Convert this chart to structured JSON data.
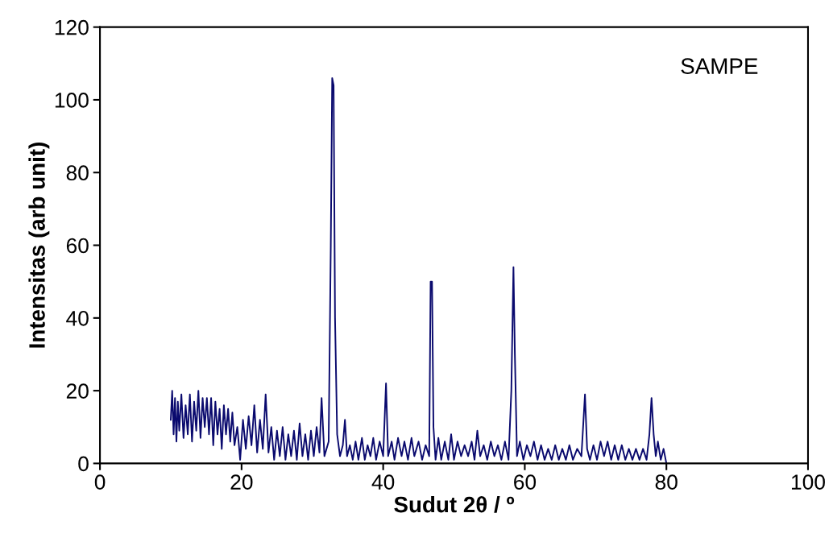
{
  "chart_data": {
    "type": "line",
    "xlabel": "Sudut 2θ / º",
    "ylabel": "Intensitas (arb unit)",
    "annotations": [
      "SAMPE"
    ],
    "xlim": [
      0,
      100
    ],
    "xticks": [
      0,
      20,
      40,
      60,
      80,
      100
    ],
    "ylim": [
      0,
      120
    ],
    "yticks": [
      0,
      20,
      40,
      60,
      80,
      100,
      120
    ],
    "grid": false,
    "series": [
      {
        "color": "#0a0a6e",
        "x": [
          10.0,
          10.2,
          10.4,
          10.6,
          10.8,
          11.0,
          11.2,
          11.5,
          11.8,
          12.1,
          12.4,
          12.7,
          13.0,
          13.3,
          13.6,
          13.9,
          14.2,
          14.5,
          14.8,
          15.1,
          15.4,
          15.7,
          16.0,
          16.3,
          16.6,
          16.9,
          17.2,
          17.5,
          17.8,
          18.1,
          18.4,
          18.7,
          19.0,
          19.4,
          19.8,
          20.2,
          20.6,
          21.0,
          21.4,
          21.8,
          22.2,
          22.6,
          23.0,
          23.4,
          23.8,
          24.2,
          24.6,
          25.0,
          25.4,
          25.8,
          26.2,
          26.6,
          27.0,
          27.4,
          27.8,
          28.2,
          28.6,
          29.0,
          29.4,
          29.8,
          30.2,
          30.6,
          31.0,
          31.3,
          31.7,
          32.3,
          32.6,
          32.8,
          33.0,
          33.2,
          33.5,
          33.9,
          34.3,
          34.6,
          34.9,
          35.3,
          35.7,
          36.1,
          36.5,
          37.0,
          37.4,
          37.8,
          38.2,
          38.6,
          39.0,
          39.5,
          40.0,
          40.4,
          40.7,
          41.2,
          41.6,
          42.1,
          42.6,
          43.0,
          43.5,
          44.0,
          44.4,
          45.0,
          45.5,
          46.0,
          46.5,
          46.7,
          46.9,
          47.1,
          47.4,
          47.8,
          48.2,
          48.7,
          49.2,
          49.6,
          50.0,
          50.5,
          51.0,
          51.5,
          52.0,
          52.5,
          52.9,
          53.3,
          53.7,
          54.2,
          54.7,
          55.2,
          55.7,
          56.2,
          56.7,
          57.2,
          57.7,
          58.1,
          58.4,
          58.6,
          58.9,
          59.3,
          59.8,
          60.3,
          60.8,
          61.3,
          61.8,
          62.3,
          62.8,
          63.3,
          63.8,
          64.3,
          64.8,
          65.3,
          65.8,
          66.3,
          66.8,
          67.4,
          68.0,
          68.5,
          68.8,
          69.2,
          69.7,
          70.2,
          70.7,
          71.2,
          71.7,
          72.2,
          72.7,
          73.2,
          73.7,
          74.2,
          74.7,
          75.2,
          75.7,
          76.2,
          76.7,
          77.2,
          77.6,
          77.9,
          78.2,
          78.5,
          78.8,
          79.2,
          79.6,
          80.0
        ],
        "values": [
          12,
          20,
          8,
          18,
          6,
          17,
          9,
          19,
          7,
          16,
          8,
          19,
          6,
          17,
          9,
          20,
          7,
          18,
          10,
          18,
          8,
          18,
          5,
          17,
          8,
          15,
          4,
          16,
          8,
          15,
          6,
          14,
          5,
          10,
          1,
          12,
          4,
          13,
          5,
          16,
          3,
          12,
          4,
          19,
          3,
          10,
          1,
          9,
          2,
          10,
          1,
          8,
          2,
          9,
          1,
          11,
          2,
          8,
          1,
          9,
          2,
          10,
          3,
          18,
          2,
          6,
          60,
          106,
          104,
          40,
          8,
          2,
          5,
          12,
          2,
          5,
          1,
          6,
          1,
          7,
          1,
          5,
          2,
          7,
          1,
          6,
          2,
          22,
          2,
          6,
          1,
          7,
          2,
          6,
          1,
          7,
          2,
          6,
          1,
          5,
          2,
          50,
          50,
          10,
          1,
          7,
          1,
          6,
          1,
          8,
          1,
          6,
          2,
          5,
          2,
          6,
          1,
          9,
          2,
          5,
          1,
          6,
          2,
          5,
          1,
          6,
          1,
          20,
          54,
          30,
          2,
          6,
          1,
          5,
          2,
          6,
          1,
          5,
          1,
          4,
          1,
          5,
          1,
          4,
          1,
          5,
          1,
          4,
          2,
          19,
          4,
          1,
          5,
          1,
          6,
          2,
          6,
          1,
          5,
          1,
          5,
          1,
          4,
          1,
          4,
          1,
          4,
          1,
          8,
          18,
          8,
          2,
          6,
          1,
          4,
          0
        ]
      }
    ]
  }
}
